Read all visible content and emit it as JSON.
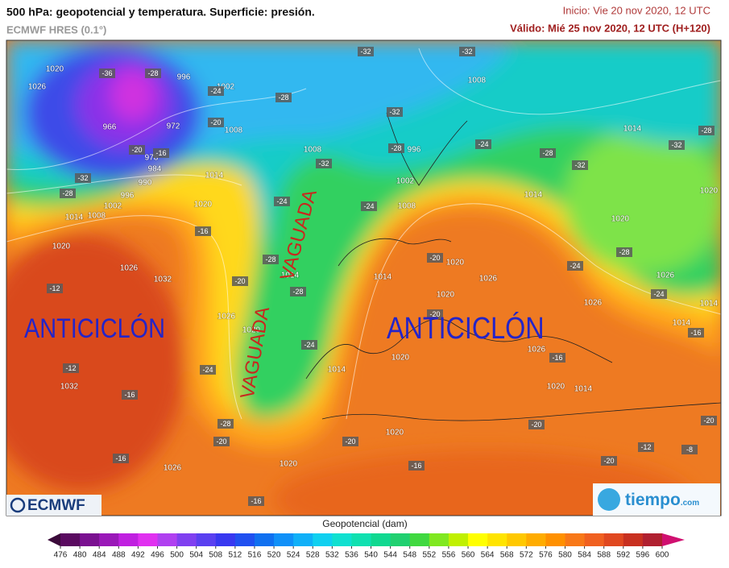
{
  "header": {
    "title": "500 hPa: geopotencial y temperatura. Superficie: presión.",
    "model": "ECMWF HRES (0.1°)",
    "init": "Inicio: Vie 20 nov 2020, 12 UTC",
    "valid": "Válido: Mié 25 nov 2020, 12 UTC (H+120)"
  },
  "map": {
    "annotations": [
      "ANTICICLÓN",
      "VAGUADA",
      "VAGUADA",
      "ANTICICLÓN"
    ],
    "pressure_labels": [
      1020,
      1026,
      996,
      1002,
      972,
      966,
      1008,
      978,
      984,
      990,
      996,
      1002,
      1008,
      1014,
      1014,
      1020,
      1020,
      1026,
      1032,
      1026,
      1020,
      1032,
      1026,
      1008,
      1008,
      1014,
      1002,
      996,
      1014,
      1008,
      1020,
      1020,
      1020,
      1026,
      1020,
      1014,
      1014,
      1026,
      1014,
      1014,
      1026,
      1026,
      1020,
      1014,
      1020,
      1014,
      1020,
      1020
    ],
    "temperature_labels": [
      -36,
      -28,
      -24,
      -28,
      -32,
      -32,
      -32,
      -20,
      -20,
      -16,
      -32,
      -28,
      -32,
      -28,
      -24,
      -28,
      -32,
      -32,
      -28,
      -24,
      -24,
      -16,
      -12,
      -20,
      -28,
      -28,
      -24,
      -24,
      -12,
      -16,
      -20,
      -24,
      -28,
      -24,
      -16,
      -20,
      -16,
      -20,
      -20,
      -20,
      -28,
      -16,
      -16,
      -16,
      -12,
      -8,
      -20,
      -20
    ]
  },
  "colorbar": {
    "label": "Geopotencial (dam)",
    "ticks": [
      476,
      480,
      484,
      488,
      492,
      496,
      500,
      504,
      508,
      512,
      516,
      520,
      524,
      528,
      532,
      536,
      540,
      544,
      548,
      552,
      556,
      560,
      564,
      568,
      572,
      576,
      580,
      584,
      588,
      592,
      596,
      600
    ],
    "colors": [
      "#3b0a3a",
      "#5a0a60",
      "#7a1090",
      "#9a18b8",
      "#c020e0",
      "#e030f0",
      "#b040f0",
      "#8040f0",
      "#5a40f0",
      "#3838f0",
      "#2050f0",
      "#1070f0",
      "#1090f8",
      "#10b0f8",
      "#10d0f0",
      "#10e0d0",
      "#10e0b0",
      "#10d890",
      "#20d070",
      "#40d840",
      "#80e820",
      "#c0f000",
      "#ffff00",
      "#ffe400",
      "#ffc800",
      "#ffac00",
      "#ff9000",
      "#f87818",
      "#f06020",
      "#e04820",
      "#c83020",
      "#b02030",
      "#d01070"
    ]
  },
  "logos": {
    "left": "ECMWF",
    "right": "tiempo",
    "right_suffix": ".com"
  }
}
